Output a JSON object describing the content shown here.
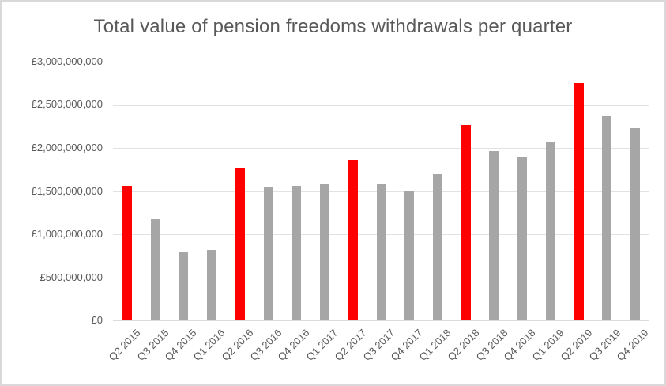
{
  "chart_data": {
    "type": "bar",
    "title": "Total value of pension freedoms withdrawals per quarter",
    "currency": "GBP",
    "categories": [
      "Q2 2015",
      "Q3 2015",
      "Q4 2015",
      "Q1 2016",
      "Q2 2016",
      "Q3 2016",
      "Q4 2016",
      "Q1 2017",
      "Q2 2017",
      "Q3 2017",
      "Q4 2017",
      "Q1 2018",
      "Q2 2018",
      "Q3 2018",
      "Q4 2018",
      "Q1 2019",
      "Q2 2019",
      "Q3 2019",
      "Q4 2019"
    ],
    "values": [
      1560000000,
      1170000000,
      800000000,
      820000000,
      1770000000,
      1540000000,
      1560000000,
      1590000000,
      1860000000,
      1590000000,
      1500000000,
      1700000000,
      2270000000,
      1960000000,
      1900000000,
      2060000000,
      2750000000,
      2370000000,
      2230000000
    ],
    "bar_colors": [
      "#FF0000",
      "#A6A6A6",
      "#A6A6A6",
      "#A6A6A6",
      "#FF0000",
      "#A6A6A6",
      "#A6A6A6",
      "#A6A6A6",
      "#FF0000",
      "#A6A6A6",
      "#A6A6A6",
      "#A6A6A6",
      "#FF0000",
      "#A6A6A6",
      "#A6A6A6",
      "#A6A6A6",
      "#FF0000",
      "#A6A6A6",
      "#A6A6A6"
    ],
    "highlighted_categories": [
      "Q2 2015",
      "Q2 2016",
      "Q2 2017",
      "Q2 2018",
      "Q2 2019"
    ],
    "y_ticks": [
      {
        "value": 3000000000,
        "label": "£3,000,000,000"
      },
      {
        "value": 2500000000,
        "label": "£2,500,000,000"
      },
      {
        "value": 2000000000,
        "label": "£2,000,000,000"
      },
      {
        "value": 1500000000,
        "label": "£1,500,000,000"
      },
      {
        "value": 1000000000,
        "label": "£1,000,000,000"
      },
      {
        "value": 500000000,
        "label": "£500,000,000"
      },
      {
        "value": 0,
        "label": "£0"
      }
    ],
    "ylim": [
      0,
      3000000000
    ],
    "xlabel": "",
    "ylabel": "",
    "grid": true,
    "legend": false,
    "colors": {
      "highlight": "#FF0000",
      "default_bar": "#A6A6A6",
      "gridline": "#E2E2E2",
      "axis_line": "#DCDCDC",
      "text": "#595959",
      "background": "#FFFFFF",
      "border": "#D9D9D9"
    }
  }
}
